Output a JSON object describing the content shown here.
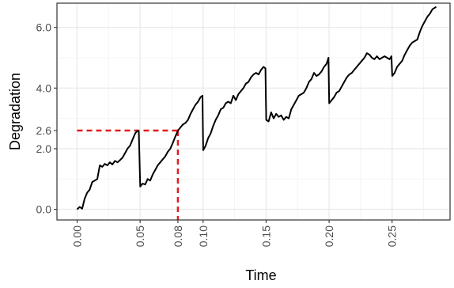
{
  "chart_data": {
    "type": "line",
    "xlabel": "Time",
    "ylabel": "Degradation",
    "xlim": [
      -0.016,
      0.296
    ],
    "ylim": [
      -0.35,
      6.8
    ],
    "grid": true,
    "x_tick_labels": [
      "0.00",
      "0.05",
      "0.08",
      "0.10",
      "0.15",
      "0.20",
      "0.25"
    ],
    "y_tick_labels": [
      "0.0",
      "2.0",
      "2.6",
      "4.0",
      "6.0"
    ],
    "x_major_ticks": [
      0.0,
      0.05,
      0.1,
      0.15,
      0.2,
      0.25
    ],
    "x_minor_ticks": [
      0.025,
      0.075,
      0.125,
      0.175,
      0.225,
      0.275
    ],
    "y_major_ticks": [
      0.0,
      2.0,
      4.0,
      6.0
    ],
    "y_minor_ticks": [
      1.0,
      3.0,
      5.0
    ],
    "threshold": {
      "y": 2.6,
      "x": 0.08,
      "color": "#e41a1c"
    },
    "line_color": "#000000",
    "series": [
      {
        "x": [
          0.0,
          0.002,
          0.004,
          0.006,
          0.008,
          0.01,
          0.012,
          0.014,
          0.016,
          0.018,
          0.02,
          0.022,
          0.024,
          0.026,
          0.028,
          0.03,
          0.032,
          0.034,
          0.036,
          0.038,
          0.04,
          0.042,
          0.044,
          0.046,
          0.048,
          0.049,
          0.0501,
          0.052,
          0.054,
          0.056,
          0.058,
          0.06,
          0.062,
          0.064,
          0.066,
          0.068,
          0.07,
          0.072,
          0.074,
          0.076,
          0.078,
          0.08,
          0.082,
          0.084,
          0.086,
          0.088,
          0.09,
          0.092,
          0.094,
          0.096,
          0.098,
          0.0995,
          0.1001,
          0.102,
          0.104,
          0.106,
          0.108,
          0.11,
          0.112,
          0.114,
          0.116,
          0.118,
          0.12,
          0.122,
          0.124,
          0.126,
          0.128,
          0.13,
          0.132,
          0.134,
          0.136,
          0.138,
          0.14,
          0.142,
          0.144,
          0.146,
          0.148,
          0.1495,
          0.1501,
          0.152,
          0.154,
          0.156,
          0.158,
          0.16,
          0.162,
          0.164,
          0.166,
          0.168,
          0.17,
          0.172,
          0.174,
          0.176,
          0.178,
          0.18,
          0.182,
          0.184,
          0.186,
          0.188,
          0.19,
          0.192,
          0.194,
          0.196,
          0.198,
          0.1995,
          0.2001,
          0.202,
          0.204,
          0.206,
          0.208,
          0.21,
          0.212,
          0.214,
          0.216,
          0.218,
          0.22,
          0.222,
          0.224,
          0.226,
          0.228,
          0.23,
          0.232,
          0.234,
          0.236,
          0.238,
          0.24,
          0.242,
          0.244,
          0.246,
          0.248,
          0.2495,
          0.2501,
          0.252,
          0.254,
          0.256,
          0.258,
          0.26,
          0.262,
          0.264,
          0.266,
          0.268,
          0.27,
          0.272,
          0.274,
          0.276,
          0.278,
          0.28,
          0.282,
          0.284,
          0.285
        ],
        "y": [
          0.0,
          0.08,
          0.02,
          0.35,
          0.55,
          0.65,
          0.9,
          0.95,
          1.0,
          1.45,
          1.4,
          1.5,
          1.45,
          1.55,
          1.48,
          1.6,
          1.55,
          1.62,
          1.7,
          1.85,
          2.0,
          2.1,
          2.3,
          2.5,
          2.6,
          2.55,
          0.75,
          0.85,
          0.82,
          1.0,
          0.95,
          1.15,
          1.3,
          1.45,
          1.55,
          1.65,
          1.75,
          1.9,
          2.0,
          2.2,
          2.4,
          2.6,
          2.7,
          2.8,
          2.85,
          2.95,
          3.15,
          3.3,
          3.45,
          3.55,
          3.7,
          3.75,
          1.95,
          2.1,
          2.35,
          2.5,
          2.75,
          2.95,
          3.1,
          3.3,
          3.35,
          3.5,
          3.55,
          3.5,
          3.75,
          3.6,
          3.8,
          3.9,
          4.0,
          4.15,
          4.2,
          4.35,
          4.45,
          4.5,
          4.45,
          4.6,
          4.7,
          4.65,
          2.95,
          2.9,
          3.2,
          3.0,
          3.15,
          3.05,
          3.1,
          2.95,
          3.05,
          3.0,
          3.3,
          3.45,
          3.6,
          3.75,
          3.8,
          3.85,
          4.0,
          4.2,
          4.3,
          4.5,
          4.4,
          4.45,
          4.55,
          4.7,
          4.8,
          5.0,
          3.5,
          3.6,
          3.7,
          3.85,
          3.9,
          4.05,
          4.2,
          4.35,
          4.45,
          4.5,
          4.6,
          4.7,
          4.8,
          4.9,
          5.0,
          5.15,
          5.1,
          5.0,
          4.95,
          5.05,
          4.95,
          5.0,
          5.05,
          5.0,
          4.95,
          5.05,
          4.4,
          4.5,
          4.7,
          4.8,
          4.9,
          5.1,
          5.25,
          5.4,
          5.5,
          5.55,
          5.6,
          5.85,
          6.05,
          6.2,
          6.35,
          6.45,
          6.6,
          6.65,
          6.68
        ]
      }
    ]
  }
}
